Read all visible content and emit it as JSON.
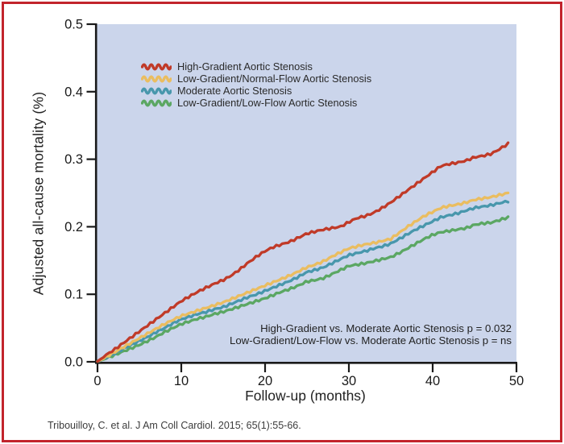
{
  "citation": "Tribouilloy, C. et al. J Am Coll Cardiol. 2015; 65(1):55-66.",
  "colors": {
    "frame": "#c2242c",
    "plot_bg": "#cbd5eb",
    "axis": "#1a1a1a",
    "text": "#2a2a2a"
  },
  "chart_data": {
    "type": "line",
    "title": "",
    "xlabel": "Follow-up (months)",
    "ylabel": "Adjusted all-cause mortality (%)",
    "xlim": [
      0,
      50
    ],
    "ylim": [
      0.0,
      0.5
    ],
    "x_ticks": [
      "0",
      "10",
      "20",
      "30",
      "40",
      "50"
    ],
    "y_ticks": [
      "0.0",
      "0.1",
      "0.2",
      "0.3",
      "0.4",
      "0.5"
    ],
    "grid": false,
    "legend_position": "upper-left-inside",
    "plot_bg": "#cbd5eb",
    "x": [
      0,
      1,
      2,
      3,
      4,
      5,
      6,
      7,
      8,
      9,
      10,
      11,
      12,
      13,
      14,
      15,
      16,
      17,
      18,
      19,
      20,
      21,
      22,
      23,
      24,
      25,
      26,
      27,
      28,
      29,
      30,
      31,
      32,
      33,
      34,
      35,
      36,
      37,
      38,
      39,
      40,
      41,
      42,
      43,
      44,
      45,
      46,
      47,
      48,
      49
    ],
    "series": [
      {
        "name": "High-Gradient Aortic Stenosis",
        "color": "#c03a28",
        "values": [
          0.0,
          0.01,
          0.018,
          0.027,
          0.036,
          0.045,
          0.054,
          0.063,
          0.072,
          0.081,
          0.09,
          0.097,
          0.104,
          0.11,
          0.116,
          0.121,
          0.128,
          0.137,
          0.147,
          0.156,
          0.164,
          0.17,
          0.174,
          0.178,
          0.184,
          0.19,
          0.193,
          0.196,
          0.198,
          0.2,
          0.207,
          0.213,
          0.216,
          0.221,
          0.228,
          0.236,
          0.245,
          0.254,
          0.263,
          0.272,
          0.281,
          0.29,
          0.293,
          0.295,
          0.298,
          0.303,
          0.305,
          0.308,
          0.315,
          0.323
        ]
      },
      {
        "name": "Low-Gradient/Normal-Flow Aortic Stenosis",
        "color": "#eabd60",
        "values": [
          0.0,
          0.007,
          0.014,
          0.021,
          0.028,
          0.035,
          0.042,
          0.049,
          0.056,
          0.062,
          0.068,
          0.072,
          0.076,
          0.08,
          0.084,
          0.088,
          0.093,
          0.098,
          0.103,
          0.108,
          0.113,
          0.118,
          0.123,
          0.128,
          0.134,
          0.14,
          0.144,
          0.149,
          0.156,
          0.162,
          0.168,
          0.171,
          0.174,
          0.176,
          0.179,
          0.182,
          0.191,
          0.2,
          0.208,
          0.216,
          0.222,
          0.228,
          0.231,
          0.233,
          0.236,
          0.24,
          0.242,
          0.244,
          0.247,
          0.25
        ]
      },
      {
        "name": "Moderate Aortic Stenosis",
        "color": "#4897ac",
        "values": [
          0.0,
          0.006,
          0.012,
          0.019,
          0.025,
          0.031,
          0.037,
          0.044,
          0.05,
          0.057,
          0.063,
          0.067,
          0.071,
          0.074,
          0.078,
          0.081,
          0.086,
          0.091,
          0.096,
          0.1,
          0.105,
          0.11,
          0.115,
          0.12,
          0.126,
          0.133,
          0.136,
          0.14,
          0.146,
          0.152,
          0.158,
          0.161,
          0.164,
          0.168,
          0.171,
          0.175,
          0.182,
          0.189,
          0.196,
          0.202,
          0.208,
          0.214,
          0.217,
          0.22,
          0.224,
          0.228,
          0.23,
          0.232,
          0.235,
          0.238
        ]
      },
      {
        "name": "Low-Gradient/Low-Flow Aortic Stenosis",
        "color": "#5ba763",
        "values": [
          0.0,
          0.005,
          0.01,
          0.015,
          0.02,
          0.025,
          0.031,
          0.037,
          0.044,
          0.05,
          0.056,
          0.06,
          0.064,
          0.067,
          0.071,
          0.074,
          0.078,
          0.082,
          0.086,
          0.09,
          0.094,
          0.099,
          0.104,
          0.108,
          0.113,
          0.119,
          0.121,
          0.124,
          0.13,
          0.136,
          0.142,
          0.144,
          0.146,
          0.149,
          0.152,
          0.155,
          0.161,
          0.168,
          0.175,
          0.182,
          0.188,
          0.192,
          0.194,
          0.196,
          0.198,
          0.203,
          0.205,
          0.206,
          0.21,
          0.214
        ]
      }
    ],
    "annotations": [
      "High-Gradient vs. Moderate Aortic Stenosis p = 0.032",
      "Low-Gradient/Low-Flow vs. Moderate Aortic Stenosis p = ns"
    ]
  }
}
